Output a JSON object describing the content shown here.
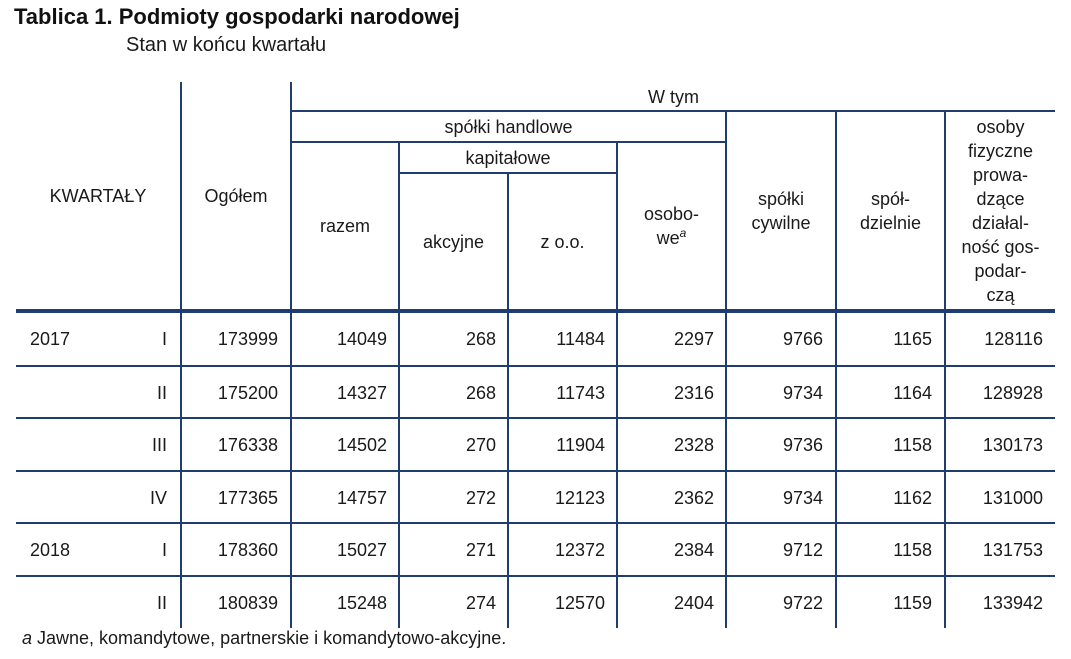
{
  "title": "Tablica 1. Podmioty gospodarki narodowej",
  "subtitle": "Stan w końcu kwartału",
  "headers": {
    "kwartaly": "KWARTAŁY",
    "ogolem": "Ogółem",
    "w_tym": "W tym",
    "spolki_handlowe": "spółki handlowe",
    "kapitalowe": "kapitałowe",
    "razem": "razem",
    "akcyjne": "akcyjne",
    "zoo": "z o.o.",
    "osobowe": "osobo-\nwe",
    "osobowe_mark": "a",
    "spolki_cywilne": "spółki\ncywilne",
    "spoldzielnie": "spół-\ndzielnie",
    "osoby_fizyczne": "osoby\nfizyczne\nprowa-\ndzące\ndziałal-\nność gos-\npodar-\nczą"
  },
  "rows": [
    {
      "year": "2017",
      "quarter": "I",
      "values": [
        "173999",
        "14049",
        "268",
        "11484",
        "2297",
        "9766",
        "1165",
        "128116"
      ]
    },
    {
      "year": "",
      "quarter": "II",
      "values": [
        "175200",
        "14327",
        "268",
        "11743",
        "2316",
        "9734",
        "1164",
        "128928"
      ]
    },
    {
      "year": "",
      "quarter": "III",
      "values": [
        "176338",
        "14502",
        "270",
        "11904",
        "2328",
        "9736",
        "1158",
        "130173"
      ]
    },
    {
      "year": "",
      "quarter": "IV",
      "values": [
        "177365",
        "14757",
        "272",
        "12123",
        "2362",
        "9734",
        "1162",
        "131000"
      ]
    },
    {
      "year": "2018",
      "quarter": "I",
      "values": [
        "178360",
        "15027",
        "271",
        "12372",
        "2384",
        "9712",
        "1158",
        "131753"
      ]
    },
    {
      "year": "",
      "quarter": "II",
      "values": [
        "180839",
        "15248",
        "274",
        "12570",
        "2404",
        "9722",
        "1159",
        "133942"
      ]
    }
  ],
  "footnote": {
    "mark": "a",
    "text": " Jawne, komandytowe, partnerskie i komandytowo-akcyjne."
  },
  "colors": {
    "rule": "#1f3d6e",
    "text": "#1a1a1a"
  }
}
